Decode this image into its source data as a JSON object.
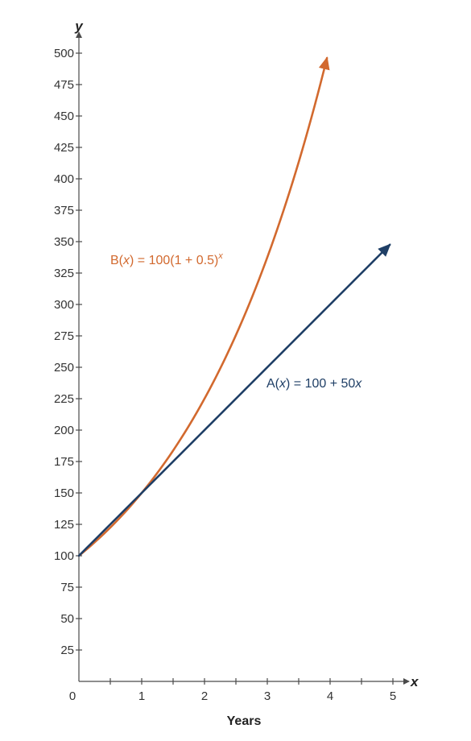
{
  "chart_data": {
    "type": "line",
    "xlabel": "Years",
    "x_axis_name": "x",
    "y_axis_name": "y",
    "xlim": [
      0,
      5
    ],
    "ylim": [
      0,
      500
    ],
    "x_ticks": [
      0,
      1,
      2,
      3,
      4,
      5
    ],
    "x_tick_labels": [
      "0",
      "1",
      "2",
      "3",
      "4",
      "5"
    ],
    "x_minor_step": 0.5,
    "y_ticks": [
      25,
      50,
      75,
      100,
      125,
      150,
      175,
      200,
      225,
      250,
      275,
      300,
      325,
      350,
      375,
      400,
      425,
      450,
      475,
      500
    ],
    "grid": false,
    "series": [
      {
        "id": "exponential",
        "label_parts": [
          "B(",
          "x",
          ") = 100(1 + 0.5)",
          "x"
        ],
        "color": "#d2692e",
        "formula": {
          "kind": "exponential",
          "a": 100,
          "b": 1.5
        },
        "x_range": [
          0,
          3.95
        ]
      },
      {
        "id": "linear",
        "label_parts": [
          "A(",
          "x",
          ") = 100 + 50",
          "x"
        ],
        "color": "#1f3f66",
        "formula": {
          "kind": "linear",
          "intercept": 100,
          "slope": 50
        },
        "x_range": [
          0,
          4.95
        ]
      }
    ]
  }
}
